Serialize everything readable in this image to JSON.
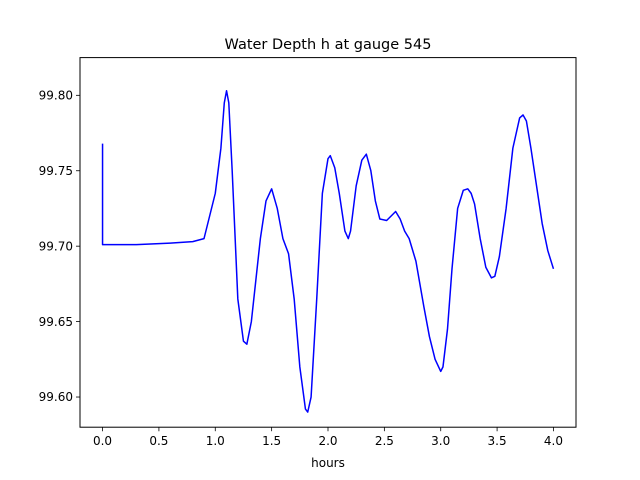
{
  "chart_data": {
    "type": "line",
    "title": "Water Depth h at gauge 545",
    "xlabel": "hours",
    "ylabel": "",
    "xlim": [
      -0.2,
      4.2
    ],
    "ylim": [
      99.58,
      99.825
    ],
    "xticks": [
      0.0,
      0.5,
      1.0,
      1.5,
      2.0,
      2.5,
      3.0,
      3.5,
      4.0
    ],
    "xtick_labels": [
      "0.0",
      "0.5",
      "1.0",
      "1.5",
      "2.0",
      "2.5",
      "3.0",
      "3.5",
      "4.0"
    ],
    "yticks": [
      99.6,
      99.65,
      99.7,
      99.75,
      99.8
    ],
    "ytick_labels": [
      "99.60",
      "99.65",
      "99.70",
      "99.75",
      "99.80"
    ],
    "grid": false,
    "series": [
      {
        "color": "#0000ff",
        "x": [
          0.0,
          0.0,
          0.02,
          0.3,
          0.6,
          0.8,
          0.9,
          0.95,
          1.0,
          1.05,
          1.08,
          1.1,
          1.12,
          1.15,
          1.2,
          1.25,
          1.28,
          1.32,
          1.4,
          1.45,
          1.5,
          1.55,
          1.6,
          1.65,
          1.7,
          1.75,
          1.8,
          1.82,
          1.85,
          1.9,
          1.95,
          2.0,
          2.02,
          2.06,
          2.1,
          2.15,
          2.18,
          2.2,
          2.25,
          2.3,
          2.34,
          2.38,
          2.42,
          2.46,
          2.52,
          2.56,
          2.6,
          2.64,
          2.68,
          2.72,
          2.78,
          2.85,
          2.9,
          2.95,
          3.0,
          3.02,
          3.06,
          3.1,
          3.15,
          3.2,
          3.24,
          3.27,
          3.3,
          3.35,
          3.4,
          3.45,
          3.48,
          3.52,
          3.58,
          3.64,
          3.7,
          3.73,
          3.76,
          3.8,
          3.85,
          3.9,
          3.95,
          4.0
        ],
        "y": [
          99.768,
          99.701,
          99.701,
          99.701,
          99.702,
          99.703,
          99.705,
          99.72,
          99.735,
          99.765,
          99.795,
          99.803,
          99.795,
          99.75,
          99.665,
          99.637,
          99.635,
          99.65,
          99.705,
          99.73,
          99.738,
          99.725,
          99.705,
          99.695,
          99.665,
          99.62,
          99.592,
          99.59,
          99.6,
          99.665,
          99.735,
          99.758,
          99.76,
          99.752,
          99.735,
          99.71,
          99.705,
          99.71,
          99.74,
          99.757,
          99.761,
          99.75,
          99.73,
          99.718,
          99.717,
          99.72,
          99.723,
          99.718,
          99.71,
          99.705,
          99.69,
          99.66,
          99.64,
          99.625,
          99.617,
          99.62,
          99.645,
          99.685,
          99.725,
          99.737,
          99.738,
          99.735,
          99.728,
          99.705,
          99.686,
          99.679,
          99.68,
          99.693,
          99.725,
          99.765,
          99.785,
          99.787,
          99.783,
          99.765,
          99.74,
          99.715,
          99.697,
          99.685
        ]
      }
    ]
  }
}
